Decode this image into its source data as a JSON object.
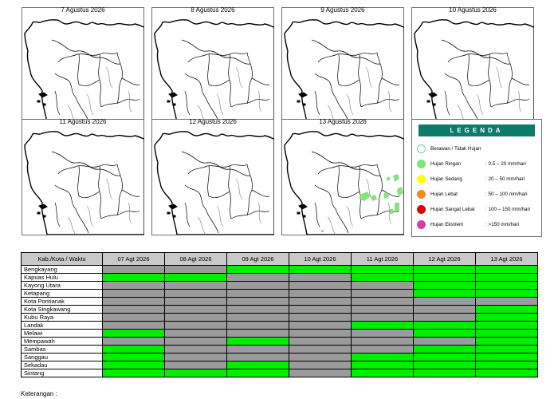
{
  "maps": [
    {
      "date": "7 Agustus 2026",
      "rain": []
    },
    {
      "date": "8 Agustus 2026",
      "rain": []
    },
    {
      "date": "9 Agustus 2026",
      "rain": []
    },
    {
      "date": "10 Agustus 2026",
      "rain": []
    },
    {
      "date": "11 Agustus 2026",
      "rain": []
    },
    {
      "date": "12 Agustus 2026",
      "rain": []
    },
    {
      "date": "13 Agustus 2026",
      "rain": [
        "east",
        "southeast",
        "south"
      ]
    }
  ],
  "legend": {
    "title": "LEGENDA",
    "items": [
      {
        "name": "Berawan / Tidak Hujan",
        "range": "",
        "color": "#ffffff"
      },
      {
        "name": "Hujan Ringan",
        "range": ": 0.5 – 20 mm/hari",
        "color": "#7ee37a"
      },
      {
        "name": "Hujan Sedang",
        "range": ": 20 – 50 mm/hari",
        "color": "#ffff00"
      },
      {
        "name": "Hujan Lebat",
        "range": ": 50 – 100 mm/hari",
        "color": "#f08a24"
      },
      {
        "name": "Hujan Sangat Lebat",
        "range": ": 100 – 150 mm/hari",
        "color": "#e00000"
      },
      {
        "name": "Hujan Ekstrem",
        "range": ": >150 mm/hari",
        "color": "#cc44aa"
      }
    ]
  },
  "table": {
    "corner": "Kab./Kota / Waktu",
    "dates": [
      "07 Agt 2026",
      "08 Agt 2026",
      "09 Agt 2026",
      "10 Agt 2026",
      "11 Agt 2026",
      "12 Agt 2026",
      "13 Agt 2026"
    ],
    "rows": [
      {
        "name": "Bengkayang",
        "cells": [
          "n",
          "n",
          "g",
          "g",
          "g",
          "g",
          "g"
        ]
      },
      {
        "name": "Kapuas Hulu",
        "cells": [
          "g",
          "g",
          "n",
          "n",
          "g",
          "g",
          "g"
        ]
      },
      {
        "name": "Kayong Utara",
        "cells": [
          "n",
          "n",
          "n",
          "n",
          "n",
          "g",
          "g"
        ]
      },
      {
        "name": "Ketapang",
        "cells": [
          "n",
          "n",
          "n",
          "n",
          "n",
          "g",
          "g"
        ]
      },
      {
        "name": "Kota Pontianak",
        "cells": [
          "n",
          "n",
          "n",
          "n",
          "n",
          "n",
          "n"
        ]
      },
      {
        "name": "Kota Singkawang",
        "cells": [
          "n",
          "n",
          "n",
          "n",
          "n",
          "n",
          "g"
        ]
      },
      {
        "name": "Kubu Raya",
        "cells": [
          "n",
          "n",
          "n",
          "n",
          "n",
          "n",
          "g"
        ]
      },
      {
        "name": "Landak",
        "cells": [
          "n",
          "n",
          "n",
          "n",
          "g",
          "g",
          "g"
        ]
      },
      {
        "name": "Melawi",
        "cells": [
          "g",
          "n",
          "n",
          "n",
          "n",
          "g",
          "g"
        ]
      },
      {
        "name": "Mempawah",
        "cells": [
          "n",
          "n",
          "g",
          "n",
          "n",
          "n",
          "g"
        ]
      },
      {
        "name": "Sambas",
        "cells": [
          "g",
          "n",
          "n",
          "n",
          "n",
          "g",
          "g"
        ]
      },
      {
        "name": "Sanggau",
        "cells": [
          "g",
          "n",
          "n",
          "n",
          "g",
          "g",
          "g"
        ]
      },
      {
        "name": "Sekadau",
        "cells": [
          "g",
          "n",
          "g",
          "n",
          "g",
          "g",
          "g"
        ]
      },
      {
        "name": "Sintang",
        "cells": [
          "g",
          "g",
          "g",
          "n",
          "g",
          "g",
          "g"
        ]
      }
    ]
  },
  "note": "Keterangan :",
  "colors": {
    "rain_cell": "#00ee00",
    "no_rain_cell": "#9b9b9b",
    "header_bg": "#c9c9c9",
    "legend_header": "#0f7a6a"
  }
}
